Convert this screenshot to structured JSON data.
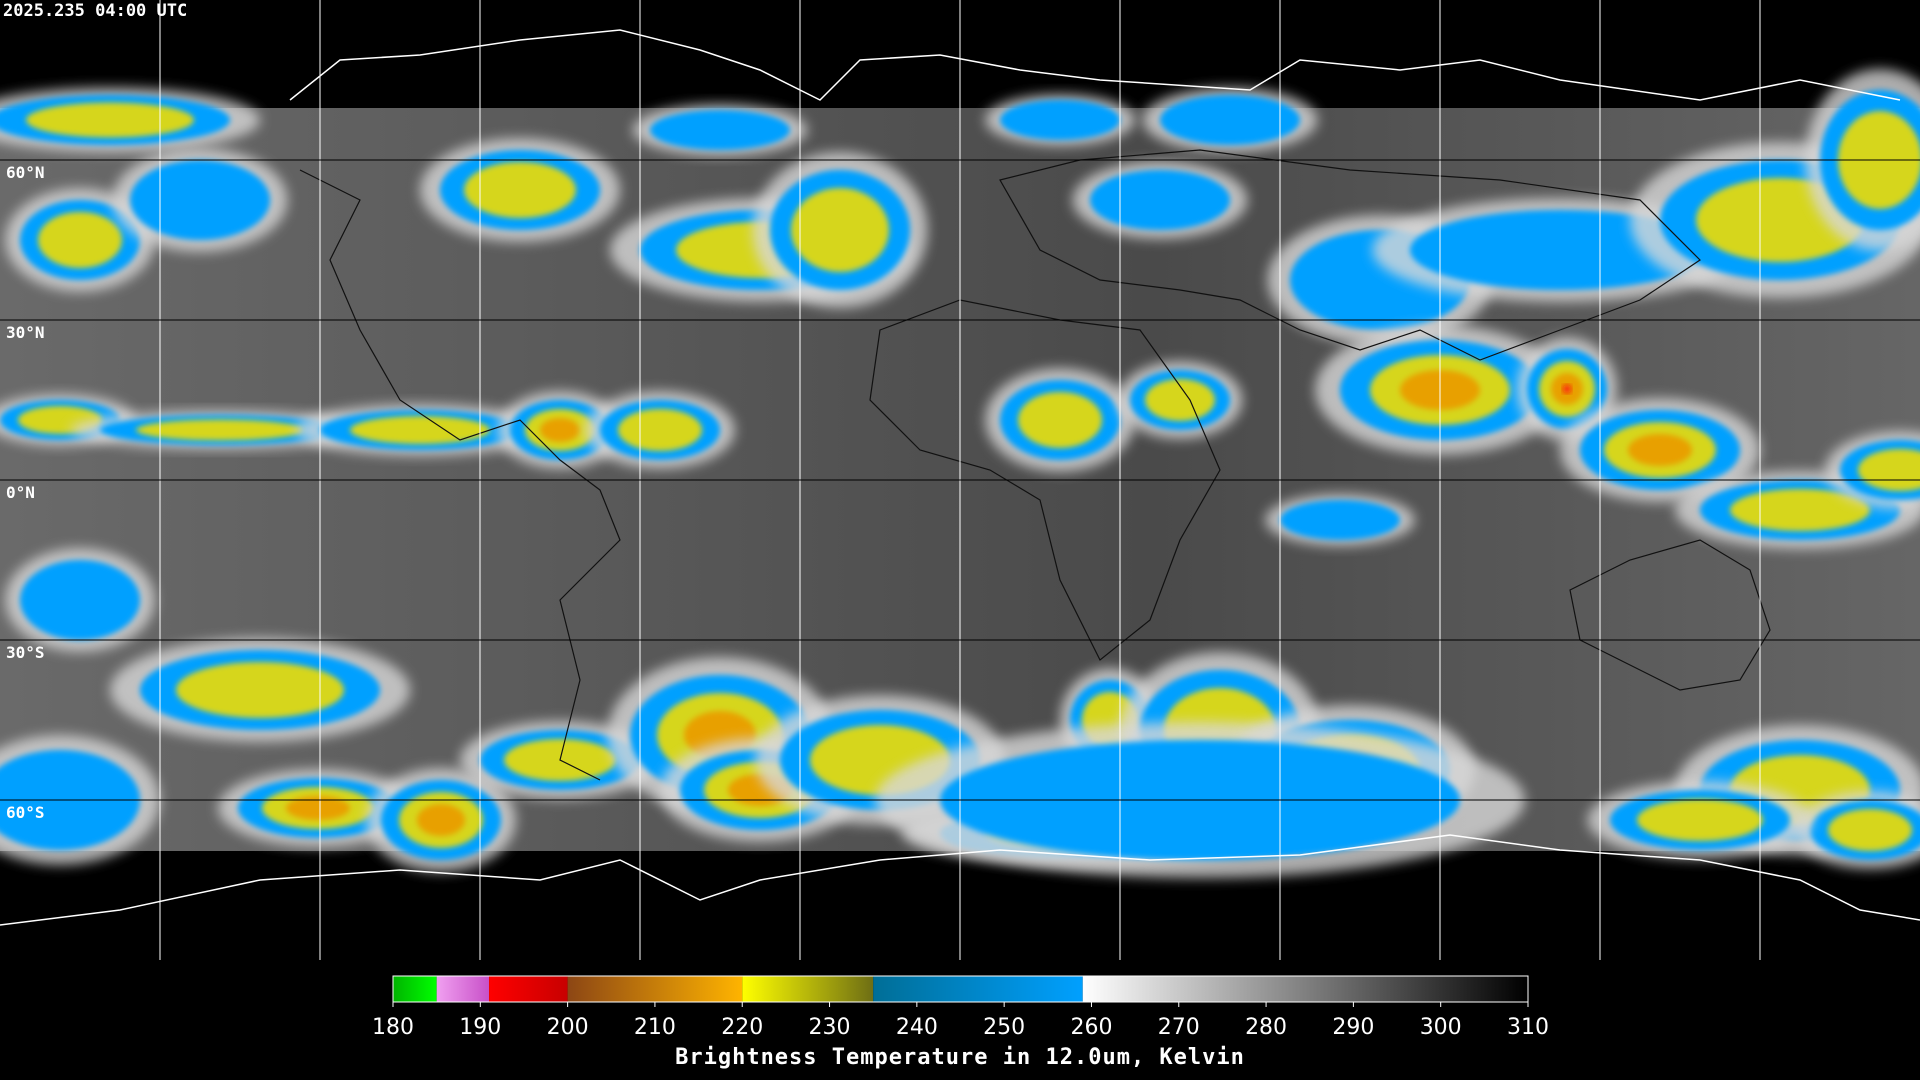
{
  "header": {
    "timestamp": "2025.235 04:00 UTC"
  },
  "map": {
    "latitudes": [
      {
        "value": 60,
        "label": "60°N"
      },
      {
        "value": 30,
        "label": "30°N"
      },
      {
        "value": 0,
        "label": "0°N"
      },
      {
        "value": -30,
        "label": "30°S"
      },
      {
        "value": -60,
        "label": "60°S"
      }
    ]
  },
  "colorbar": {
    "title": "Brightness Temperature in 12.0um, Kelvin",
    "range": [
      180,
      310
    ],
    "ticks": [
      180,
      190,
      200,
      210,
      220,
      230,
      240,
      250,
      260,
      270,
      280,
      290,
      300,
      310
    ],
    "segments": [
      {
        "from": 180,
        "to": 185,
        "colors": [
          "#00b400",
          "#00ff00"
        ]
      },
      {
        "from": 185,
        "to": 191,
        "colors": [
          "#f0a0f0",
          "#c850c8"
        ]
      },
      {
        "from": 191,
        "to": 200,
        "colors": [
          "#ff0000",
          "#c80000"
        ]
      },
      {
        "from": 200,
        "to": 220,
        "colors": [
          "#8c4614",
          "#ffb400"
        ]
      },
      {
        "from": 220,
        "to": 235,
        "colors": [
          "#ffff00",
          "#6e6e14"
        ]
      },
      {
        "from": 235,
        "to": 259,
        "colors": [
          "#006e96",
          "#00a0ff"
        ]
      },
      {
        "from": 259,
        "to": 310,
        "colors": [
          "#ffffff",
          "#000000"
        ]
      }
    ]
  }
}
